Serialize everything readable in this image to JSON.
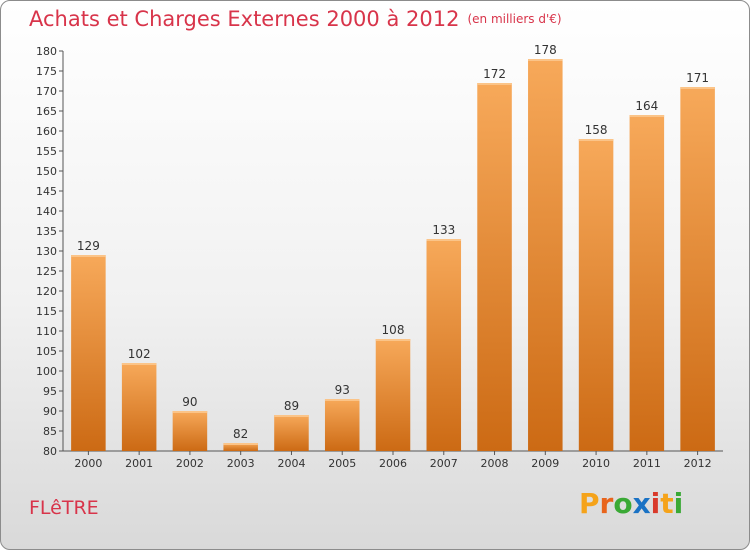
{
  "header": {
    "title": "Achats et Charges Externes 2000 à 2012",
    "unit": "(en milliers d'€)"
  },
  "footer": {
    "city": "FLêTRE",
    "logo": {
      "letters": [
        "P",
        "r",
        "o",
        "x",
        "i",
        "t",
        "i"
      ],
      "colors": [
        "#f5a31a",
        "#e8641c",
        "#3aa935",
        "#1a72c4",
        "#d93a2b",
        "#f5a31a",
        "#3aa935"
      ]
    }
  },
  "colors": {
    "bar_top": "#f7a95a",
    "bar_bottom": "#cc6a14",
    "title": "#d8344a"
  },
  "chart_data": {
    "type": "bar",
    "title": "Achats et Charges Externes 2000 à 2012",
    "subtitle": "(en milliers d'€)",
    "categories": [
      "2000",
      "2001",
      "2002",
      "2003",
      "2004",
      "2005",
      "2006",
      "2007",
      "2008",
      "2009",
      "2010",
      "2011",
      "2012"
    ],
    "values": [
      129,
      102,
      90,
      82,
      89,
      93,
      108,
      133,
      172,
      178,
      158,
      164,
      171
    ],
    "ylim": [
      80,
      180
    ],
    "ytick_step": 5,
    "grid": false,
    "legend": "none"
  }
}
